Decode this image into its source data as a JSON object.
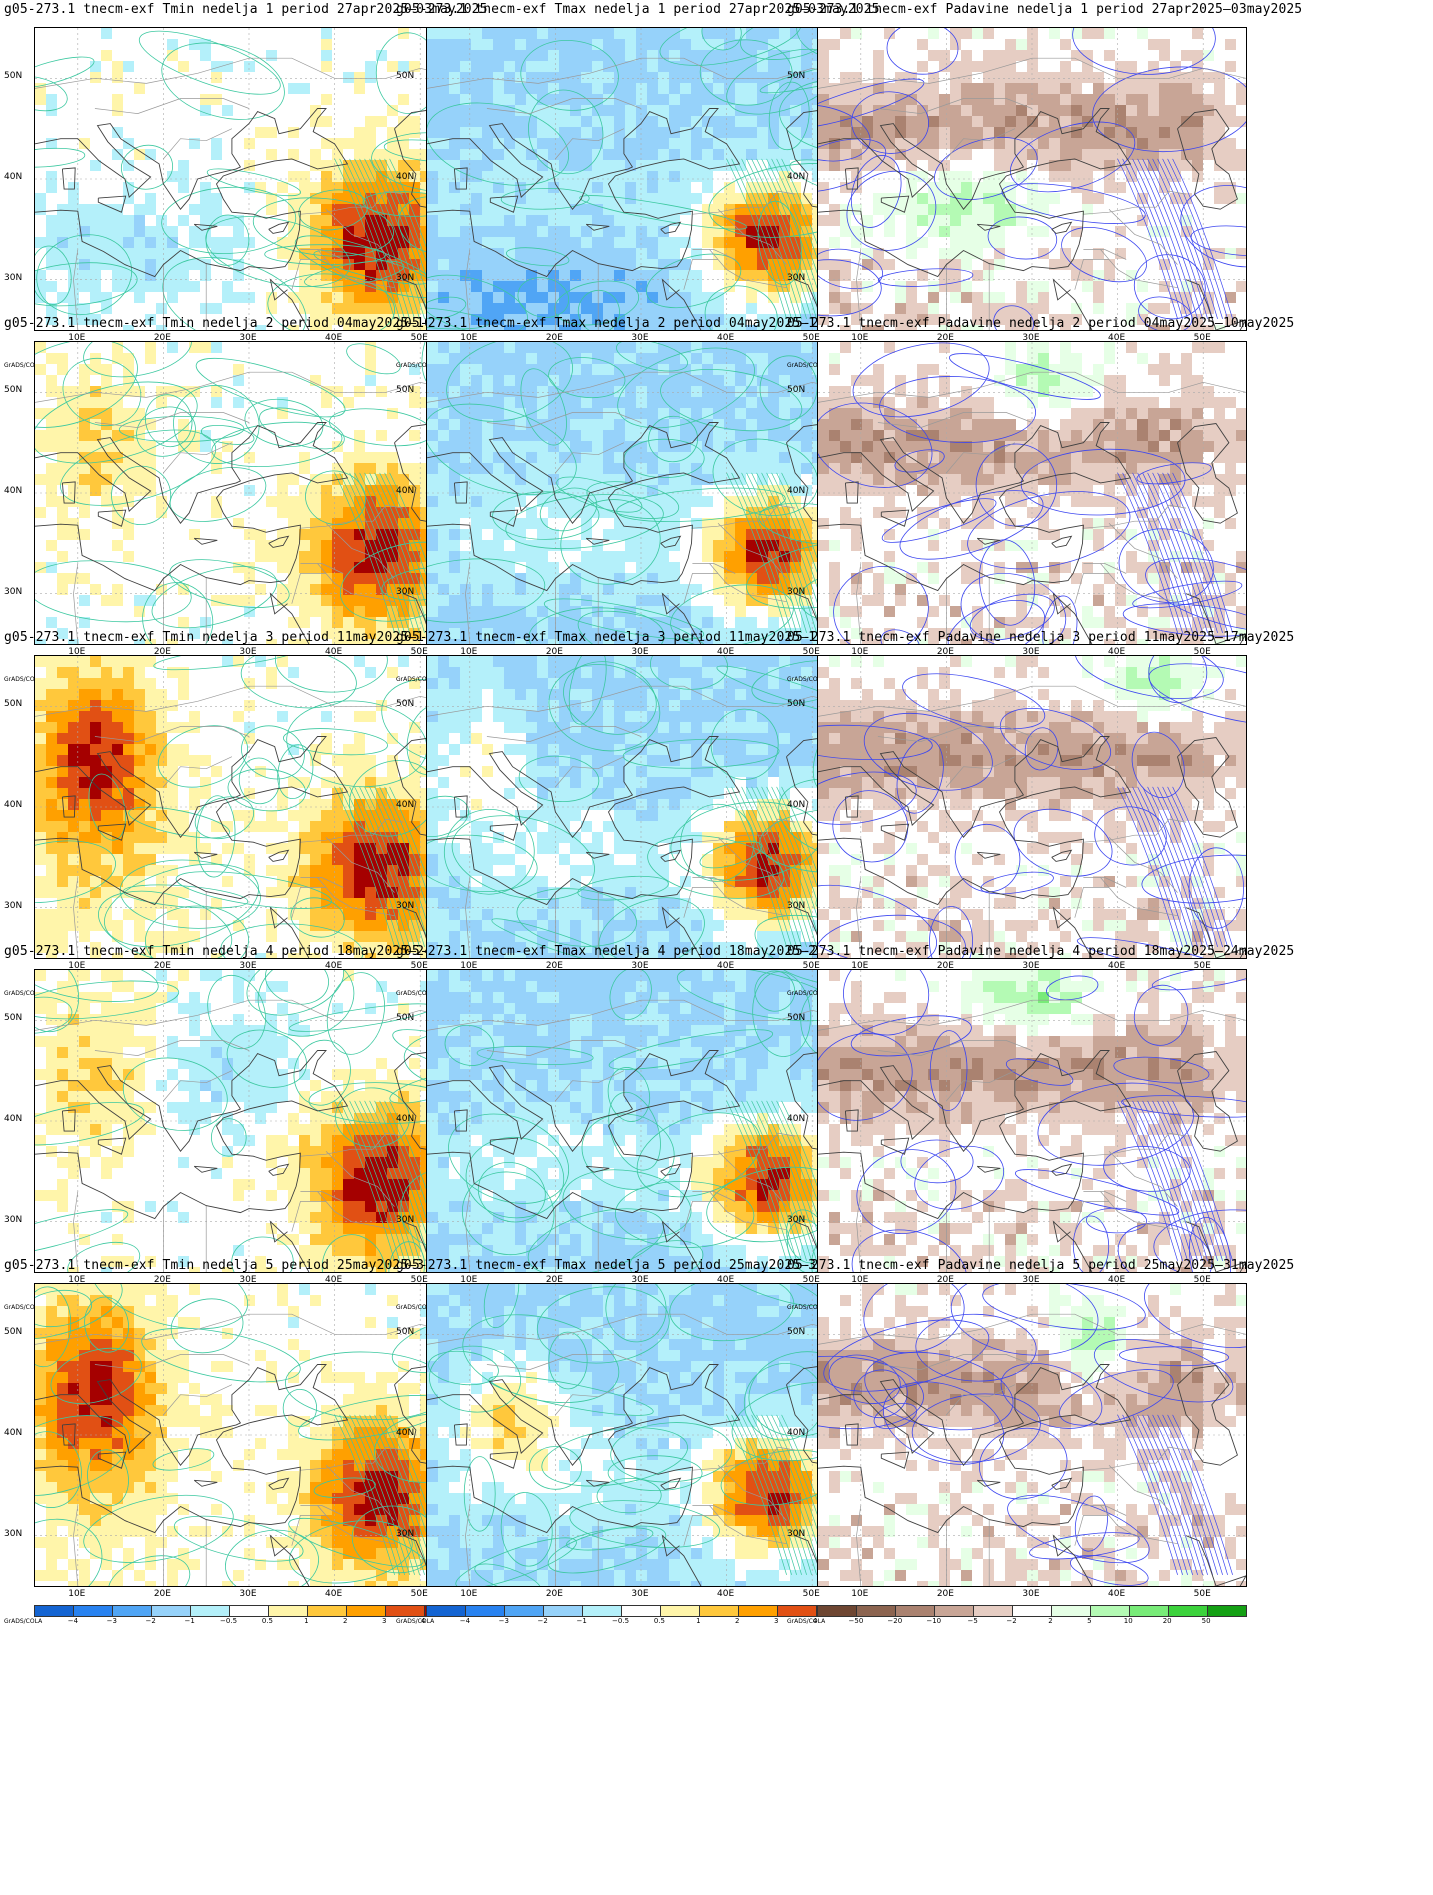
{
  "rows": [
    {
      "tmin": "g05-273.1  tnecm-exf  Tmin  nedelja  1  period  27apr2025–03may2025",
      "tmax": "g05-273.1  tnecm-exf  Tmax  nedelja  1  period  27apr2025–03may2025",
      "pad": "g05-273.1  tnecm-exf  Padavine  nedelja  1  period  27apr2025–03may2025"
    },
    {
      "tmin": "g05-273.1  tnecm-exf  Tmin  nedelja  2  period  04may2025–10may2025",
      "tmax": "g05-273.1  tnecm-exf  Tmax  nedelja  2  period  04may2025–10may2025",
      "pad": "05-273.1  tnecm-exf  Padavine  nedelja  2  period  04may2025–10may2025"
    },
    {
      "tmin": "g05-273.1  tnecm-exf  Tmin  nedelja  3  period  11may2025–17may2025",
      "tmax": "g05-273.1  tnecm-exf  Tmax  nedelja  3  period  11may2025–17may2025",
      "pad": "05-273.1  tnecm-exf  Padavine  nedelja  3  period  11may2025–17may2025"
    },
    {
      "tmin": "g05-273.1  tnecm-exf  Tmin  nedelja  4  period  18may2025–24may2025",
      "tmax": "g05-273.1  tnecm-exf  Tmax  nedelja  4  period  18may2025–24may2025",
      "pad": "05-273.1  tnecm-exf  Padavine  nedelja  4  period  18may2025–24may2025"
    },
    {
      "tmin": "g05-273.1  tnecm-exf  Tmin  nedelja  5  period  25may2025–31may2025",
      "tmax": "g05-273.1  tnecm-exf  Tmax  nedelja  5  period  25may2025–31may2025",
      "pad": "05-273.1  tnecm-exf  Padavine  nedelja  5  period  25may2025–31may2025"
    }
  ],
  "axes": {
    "lat_labels": [
      "50N",
      "40N",
      "30N"
    ],
    "lon_labels": [
      "10E",
      "20E",
      "30E",
      "40E",
      "50E"
    ]
  },
  "colorbars": {
    "credit": "GrADS/COLA",
    "temp_labels": [
      "−4",
      "−3",
      "−2",
      "−1",
      "−0.5",
      "0.5",
      "1",
      "2",
      "3",
      "4"
    ],
    "temp_colors": [
      "#1464d2",
      "#2882f0",
      "#50a5f5",
      "#96d2fa",
      "#b4f0fa",
      "#ffffff",
      "#fff5aa",
      "#ffc83c",
      "#ffa000",
      "#e15014",
      "#a50000"
    ],
    "precip_labels": [
      "−50",
      "−20",
      "−10",
      "−5",
      "−2",
      "2",
      "5",
      "10",
      "20",
      "50"
    ],
    "precip_colors": [
      "#6e4632",
      "#8c6450",
      "#aa8270",
      "#c8a596",
      "#e6cdc3",
      "#ffffff",
      "#e6ffe6",
      "#b4fab4",
      "#78eb78",
      "#3cd23c",
      "#14a014"
    ]
  },
  "contour_colors": {
    "temperature": "#3cc8a0",
    "precipitation": "#3c46f0",
    "border": "#999999",
    "coast": "#404040"
  }
}
